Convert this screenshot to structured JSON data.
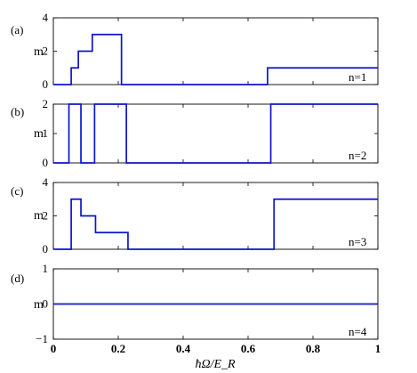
{
  "colors": {
    "series": "#0b16c8",
    "axis": "#000000",
    "background": "#ffffff"
  },
  "chart_data": {
    "type": "line",
    "step": true,
    "xlabel": "ħΩ/E_R",
    "xlim": [
      0,
      1
    ],
    "xticks": [
      "0",
      "0.2",
      "0.4",
      "0.6",
      "0.8",
      "1"
    ],
    "shared_x": true,
    "panels": [
      {
        "label": "(a)",
        "ylabel": "m",
        "annotation": "n=1",
        "ylim": [
          0,
          4
        ],
        "yticks": [
          "0",
          "2",
          "4"
        ],
        "x": [
          0,
          0.055,
          0.055,
          0.077,
          0.077,
          0.12,
          0.12,
          0.21,
          0.21,
          0.66,
          0.66,
          1.0
        ],
        "y": [
          0,
          0,
          1,
          1,
          2,
          2,
          3,
          3,
          0,
          0,
          1,
          1
        ]
      },
      {
        "label": "(b)",
        "ylabel": "m",
        "annotation": "n=2",
        "ylim": [
          0,
          2
        ],
        "yticks": [
          "0",
          "1",
          "2"
        ],
        "x": [
          0,
          0.048,
          0.048,
          0.085,
          0.085,
          0.127,
          0.127,
          0.225,
          0.225,
          0.67,
          0.67,
          1.0
        ],
        "y": [
          0,
          0,
          2,
          2,
          0,
          0,
          2,
          2,
          0,
          0,
          2,
          2
        ]
      },
      {
        "label": "(c)",
        "ylabel": "m",
        "annotation": "n=3",
        "ylim": [
          0,
          4
        ],
        "yticks": [
          "0",
          "2",
          "4"
        ],
        "x": [
          0,
          0.055,
          0.055,
          0.085,
          0.085,
          0.13,
          0.13,
          0.23,
          0.23,
          0.68,
          0.68,
          1.0
        ],
        "y": [
          0,
          0,
          3,
          3,
          2,
          2,
          1,
          1,
          0,
          0,
          3,
          3
        ]
      },
      {
        "label": "(d)",
        "ylabel": "m",
        "annotation": "n=4",
        "ylim": [
          -1,
          1
        ],
        "yticks": [
          "−1",
          "0",
          "1"
        ],
        "x": [
          0,
          1.0
        ],
        "y": [
          0,
          0
        ]
      }
    ]
  }
}
